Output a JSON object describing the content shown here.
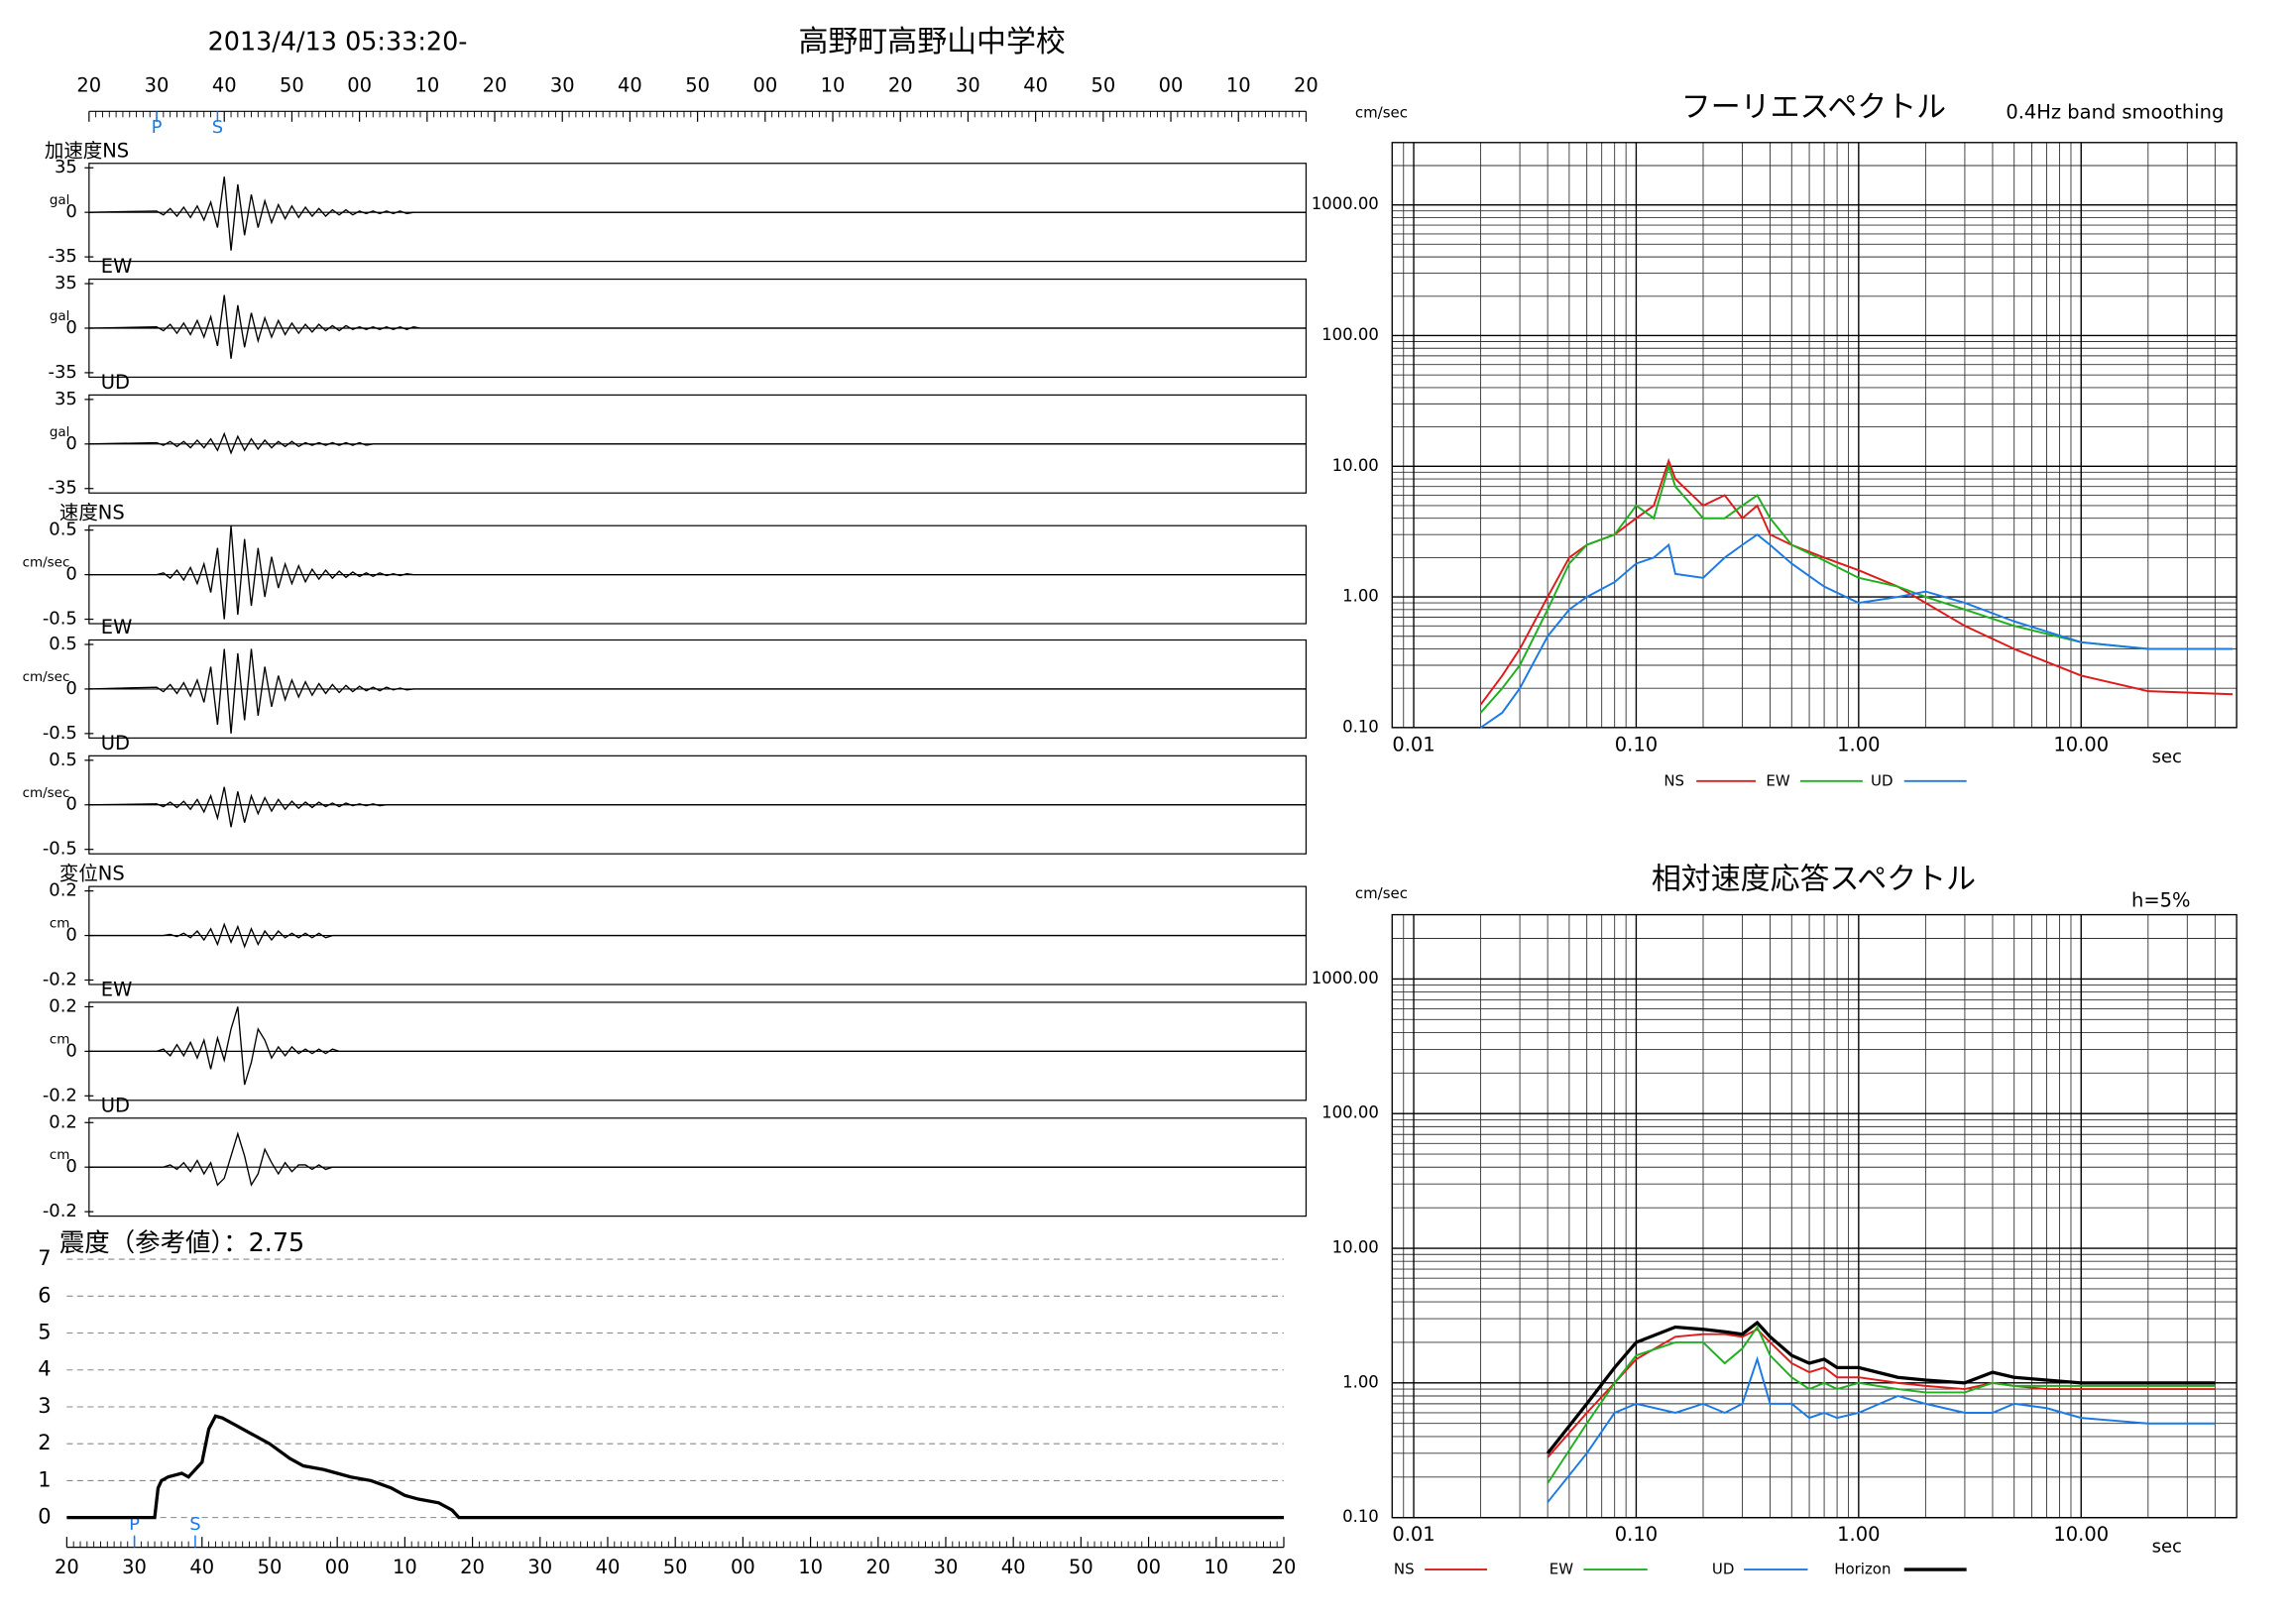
{
  "header": {
    "datetime": "2013/4/13 05:33:20-",
    "station": "高野町高野山中学校"
  },
  "chart_data": [
    {
      "type": "waveform",
      "x": [
        0,
        10,
        11,
        12,
        13,
        14,
        15,
        16,
        17,
        18,
        19,
        20,
        21,
        22,
        23,
        24,
        25,
        26,
        27,
        28,
        29,
        30,
        31,
        32,
        33,
        34,
        35,
        36,
        37,
        38,
        39,
        40,
        41,
        42,
        43,
        44,
        45,
        46,
        47,
        48,
        49,
        50,
        180
      ],
      "xlim": [
        0,
        180
      ],
      "xticks": [
        {
          "value": 0,
          "label": "20"
        },
        {
          "value": 10,
          "label": "30"
        },
        {
          "value": 20,
          "label": "40"
        },
        {
          "value": 30,
          "label": "50"
        },
        {
          "value": 40,
          "label": "00"
        },
        {
          "value": 50,
          "label": "10"
        },
        {
          "value": 60,
          "label": "20"
        },
        {
          "value": 70,
          "label": "30"
        },
        {
          "value": 80,
          "label": "40"
        },
        {
          "value": 90,
          "label": "50"
        },
        {
          "value": 100,
          "label": "00"
        },
        {
          "value": 110,
          "label": "10"
        },
        {
          "value": 120,
          "label": "20"
        },
        {
          "value": 130,
          "label": "30"
        },
        {
          "value": 140,
          "label": "40"
        },
        {
          "value": 150,
          "label": "50"
        },
        {
          "value": 160,
          "label": "00"
        },
        {
          "value": 170,
          "label": "10"
        },
        {
          "value": 180,
          "label": "20"
        }
      ],
      "markers": [
        {
          "label": "P",
          "x": 10
        },
        {
          "label": "S",
          "x": 19
        }
      ],
      "color": "#000000",
      "panels": [
        {
          "label": "加速度NS",
          "unit": "gal",
          "ylim": [
            -35,
            35
          ],
          "yticks": [
            35,
            0,
            -35
          ],
          "values": [
            0,
            1,
            -2,
            3,
            -3,
            4,
            -4,
            5,
            -6,
            8,
            -12,
            28,
            -30,
            22,
            -18,
            14,
            -12,
            9,
            -8,
            6,
            -5,
            5,
            -4,
            4,
            -3,
            3,
            -3,
            2,
            -2,
            2,
            -2,
            1,
            -1,
            1,
            -1,
            1,
            -1,
            1,
            -1,
            0,
            0,
            0,
            0
          ]
        },
        {
          "label": "EW",
          "unit": "gal",
          "ylim": [
            -35,
            35
          ],
          "yticks": [
            35,
            0,
            -35
          ],
          "values": [
            0,
            1,
            -2,
            3,
            -4,
            4,
            -5,
            6,
            -7,
            9,
            -14,
            26,
            -24,
            18,
            -15,
            12,
            -10,
            8,
            -7,
            6,
            -5,
            4,
            -4,
            3,
            -3,
            3,
            -2,
            2,
            -2,
            2,
            -1,
            1,
            -1,
            1,
            -1,
            1,
            -1,
            1,
            -1,
            1,
            0,
            0,
            0
          ]
        },
        {
          "label": "UD",
          "unit": "gal",
          "ylim": [
            -35,
            35
          ],
          "yticks": [
            35,
            0,
            -35
          ],
          "values": [
            0,
            1,
            -1,
            2,
            -2,
            2,
            -3,
            3,
            -3,
            4,
            -5,
            8,
            -7,
            6,
            -5,
            4,
            -4,
            3,
            -3,
            2,
            -2,
            2,
            -2,
            1,
            -1,
            1,
            -1,
            1,
            -1,
            1,
            -1,
            1,
            -1,
            0,
            0,
            0,
            0,
            0,
            0,
            0,
            0,
            0,
            0
          ]
        },
        {
          "label": "速度NS",
          "unit": "cm/sec",
          "ylim": [
            -0.5,
            0.5
          ],
          "yticks": [
            0.5,
            0,
            -0.5
          ],
          "values": [
            0,
            0,
            0.02,
            -0.04,
            0.05,
            -0.06,
            0.08,
            -0.1,
            0.12,
            -0.2,
            0.3,
            -0.5,
            0.55,
            -0.45,
            0.4,
            -0.35,
            0.3,
            -0.25,
            0.2,
            -0.15,
            0.12,
            -0.1,
            0.1,
            -0.08,
            0.06,
            -0.05,
            0.05,
            -0.04,
            0.04,
            -0.03,
            0.03,
            -0.02,
            0.02,
            -0.02,
            0.02,
            -0.01,
            0.01,
            -0.01,
            0.01,
            0,
            0,
            0,
            0
          ]
        },
        {
          "label": "EW",
          "unit": "cm/sec",
          "ylim": [
            -0.5,
            0.5
          ],
          "yticks": [
            0.5,
            0,
            -0.5
          ],
          "values": [
            0,
            0.02,
            -0.03,
            0.05,
            -0.05,
            0.07,
            -0.08,
            0.1,
            -0.15,
            0.25,
            -0.4,
            0.45,
            -0.5,
            0.4,
            -0.35,
            0.45,
            -0.3,
            0.25,
            -0.2,
            0.15,
            -0.12,
            0.1,
            -0.09,
            0.08,
            -0.07,
            0.06,
            -0.05,
            0.05,
            -0.04,
            0.04,
            -0.03,
            0.03,
            -0.02,
            0.02,
            -0.02,
            0.02,
            -0.01,
            0.01,
            -0.01,
            0,
            0,
            0,
            0
          ]
        },
        {
          "label": "UD",
          "unit": "cm/sec",
          "ylim": [
            -0.5,
            0.5
          ],
          "yticks": [
            0.5,
            0,
            -0.5
          ],
          "values": [
            0,
            0.01,
            -0.02,
            0.03,
            -0.03,
            0.04,
            -0.05,
            0.06,
            -0.08,
            0.1,
            -0.15,
            0.2,
            -0.25,
            0.15,
            -0.2,
            0.1,
            -0.1,
            0.08,
            -0.07,
            0.06,
            -0.05,
            0.04,
            -0.04,
            0.03,
            -0.03,
            0.03,
            -0.02,
            0.02,
            -0.02,
            0.02,
            -0.01,
            0.01,
            -0.01,
            0.01,
            -0.01,
            0,
            0,
            0,
            0,
            0,
            0,
            0,
            0
          ]
        },
        {
          "label": "変位NS",
          "unit": "cm",
          "ylim": [
            -0.2,
            0.2
          ],
          "yticks": [
            0.2,
            0,
            -0.2
          ],
          "values": [
            0,
            0,
            0,
            0.005,
            -0.005,
            0.01,
            -0.01,
            0.02,
            -0.02,
            0.03,
            -0.04,
            0.05,
            -0.03,
            0.04,
            -0.05,
            0.03,
            -0.04,
            0.02,
            -0.02,
            0.02,
            -0.01,
            0.01,
            -0.01,
            0.01,
            -0.01,
            0.01,
            -0.01,
            0,
            0,
            0,
            0,
            0,
            0,
            0,
            0,
            0,
            0,
            0,
            0,
            0,
            0,
            0,
            0
          ]
        },
        {
          "label": "EW",
          "unit": "cm",
          "ylim": [
            -0.2,
            0.2
          ],
          "yticks": [
            0.2,
            0,
            -0.2
          ],
          "values": [
            0,
            0,
            0.01,
            -0.02,
            0.03,
            -0.02,
            0.04,
            -0.03,
            0.05,
            -0.08,
            0.06,
            -0.04,
            0.1,
            0.2,
            -0.15,
            -0.05,
            0.1,
            0.05,
            -0.03,
            0.02,
            -0.02,
            0.02,
            -0.01,
            0.01,
            -0.01,
            0.01,
            -0.01,
            0.01,
            0,
            0,
            0,
            0,
            0,
            0,
            0,
            0,
            0,
            0,
            0,
            0,
            0,
            0,
            0
          ]
        },
        {
          "label": "UD",
          "unit": "cm",
          "ylim": [
            -0.2,
            0.2
          ],
          "yticks": [
            0.2,
            0,
            -0.2
          ],
          "values": [
            0,
            0,
            0,
            0.01,
            -0.01,
            0.02,
            -0.02,
            0.03,
            -0.03,
            0.02,
            -0.08,
            -0.05,
            0.05,
            0.15,
            0.05,
            -0.08,
            -0.03,
            0.08,
            0.02,
            -0.03,
            0.02,
            -0.02,
            0.01,
            0.01,
            -0.01,
            0.01,
            -0.01,
            0,
            0,
            0,
            0,
            0,
            0,
            0,
            0,
            0,
            0,
            0,
            0,
            0,
            0,
            0,
            0
          ]
        }
      ]
    },
    {
      "type": "intensity",
      "title": "震度（参考値）：2.75",
      "x": [
        0,
        13,
        13.5,
        14,
        15,
        17,
        18,
        20,
        21,
        22,
        23,
        25,
        27,
        30,
        33,
        35,
        38,
        40,
        42,
        45,
        48,
        50,
        52,
        55,
        57,
        58,
        180
      ],
      "values": [
        0,
        0,
        0.8,
        1.0,
        1.1,
        1.2,
        1.1,
        1.5,
        2.4,
        2.75,
        2.7,
        2.5,
        2.3,
        2.0,
        1.6,
        1.4,
        1.3,
        1.2,
        1.1,
        1.0,
        0.8,
        0.6,
        0.5,
        0.4,
        0.2,
        0,
        0
      ],
      "color": "#000000",
      "xlim": [
        0,
        180
      ],
      "xticks": [
        {
          "value": 0,
          "label": "20"
        },
        {
          "value": 10,
          "label": "30"
        },
        {
          "value": 20,
          "label": "40"
        },
        {
          "value": 30,
          "label": "50"
        },
        {
          "value": 40,
          "label": "00"
        },
        {
          "value": 50,
          "label": "10"
        },
        {
          "value": 60,
          "label": "20"
        },
        {
          "value": 70,
          "label": "30"
        },
        {
          "value": 80,
          "label": "40"
        },
        {
          "value": 90,
          "label": "50"
        },
        {
          "value": 100,
          "label": "00"
        },
        {
          "value": 110,
          "label": "10"
        },
        {
          "value": 120,
          "label": "20"
        },
        {
          "value": 130,
          "label": "30"
        },
        {
          "value": 140,
          "label": "40"
        },
        {
          "value": 150,
          "label": "50"
        },
        {
          "value": 160,
          "label": "00"
        },
        {
          "value": 170,
          "label": "10"
        },
        {
          "value": 180,
          "label": "20"
        }
      ],
      "ylim": [
        0,
        7
      ],
      "yticks": [
        0,
        1,
        2,
        3,
        4,
        5,
        6,
        7
      ],
      "grid": true,
      "markers": [
        {
          "label": "P",
          "x": 10
        },
        {
          "label": "S",
          "x": 19
        }
      ]
    },
    {
      "type": "spectrum",
      "title": "フーリエスペクトル",
      "subtitle": "0.4Hz band smoothing",
      "y_label": "cm/sec",
      "x_label": "sec",
      "xscale": "log",
      "yscale": "log",
      "grid": true,
      "xlim": [
        0.008,
        50
      ],
      "xticks": [
        0.01,
        {
          "value": 0.1,
          "label": "0.10"
        },
        {
          "value": 1,
          "label": "1.00"
        },
        {
          "value": 10,
          "label": "10.00"
        }
      ],
      "ylim": [
        0.1,
        3000
      ],
      "yticks": [
        {
          "value": 0.1,
          "label": "0.10"
        },
        {
          "value": 1,
          "label": "1.00"
        },
        {
          "value": 10,
          "label": "10.00"
        },
        {
          "value": 100,
          "label": "100.00"
        },
        {
          "value": 1000,
          "label": "1000.00"
        }
      ],
      "x": [
        0.02,
        0.025,
        0.03,
        0.04,
        0.05,
        0.06,
        0.08,
        0.1,
        0.12,
        0.14,
        0.15,
        0.2,
        0.25,
        0.3,
        0.35,
        0.4,
        0.5,
        0.7,
        1,
        1.5,
        2,
        3,
        5,
        10,
        20,
        48
      ],
      "series": [
        {
          "name": "NS",
          "color": "#e01a1a",
          "values": [
            0.15,
            0.25,
            0.4,
            1.0,
            2.0,
            2.5,
            3,
            4,
            5,
            11,
            8,
            5,
            6,
            4,
            5,
            3,
            2.5,
            2,
            1.6,
            1.2,
            0.9,
            0.6,
            0.4,
            0.25,
            0.19,
            0.18
          ]
        },
        {
          "name": "EW",
          "color": "#1eb01e",
          "values": [
            0.13,
            0.2,
            0.3,
            0.8,
            1.8,
            2.5,
            3,
            5,
            4,
            10,
            7,
            4,
            4,
            5,
            6,
            4,
            2.5,
            1.9,
            1.4,
            1.2,
            1.0,
            0.8,
            0.6,
            0.45,
            0.4,
            0.4
          ]
        },
        {
          "name": "UD",
          "color": "#1a7ae6",
          "values": [
            0.1,
            0.13,
            0.2,
            0.5,
            0.8,
            1.0,
            1.3,
            1.8,
            2,
            2.5,
            1.5,
            1.4,
            2,
            2.5,
            3,
            2.5,
            1.8,
            1.2,
            0.9,
            1.0,
            1.1,
            0.9,
            0.65,
            0.45,
            0.4,
            0.4
          ]
        }
      ]
    },
    {
      "type": "spectrum",
      "title": "相対速度応答スペクトル",
      "subtitle": "h=5%",
      "y_label": "cm/sec",
      "x_label": "sec",
      "xscale": "log",
      "yscale": "log",
      "grid": true,
      "xlim": [
        0.008,
        50
      ],
      "xticks": [
        0.01,
        {
          "value": 0.1,
          "label": "0.10"
        },
        {
          "value": 1,
          "label": "1.00"
        },
        {
          "value": 10,
          "label": "10.00"
        }
      ],
      "ylim": [
        0.1,
        3000
      ],
      "yticks": [
        {
          "value": 0.1,
          "label": "0.10"
        },
        {
          "value": 1,
          "label": "1.00"
        },
        {
          "value": 10,
          "label": "10.00"
        },
        {
          "value": 100,
          "label": "100.00"
        },
        {
          "value": 1000,
          "label": "1000.00"
        }
      ],
      "x": [
        0.04,
        0.06,
        0.08,
        0.1,
        0.15,
        0.2,
        0.25,
        0.3,
        0.35,
        0.4,
        0.5,
        0.6,
        0.7,
        0.8,
        1,
        1.5,
        2,
        3,
        4,
        5,
        7,
        10,
        20,
        40
      ],
      "series": [
        {
          "name": "NS",
          "color": "#e01a1a",
          "values": [
            0.28,
            0.6,
            1.0,
            1.5,
            2.2,
            2.3,
            2.3,
            2.2,
            2.5,
            2.0,
            1.4,
            1.2,
            1.3,
            1.1,
            1.1,
            1.0,
            0.95,
            0.9,
            1.0,
            0.95,
            0.9,
            0.9,
            0.9,
            0.9
          ]
        },
        {
          "name": "EW",
          "color": "#1eb01e",
          "values": [
            0.18,
            0.5,
            1.0,
            1.6,
            2.0,
            2.0,
            1.4,
            1.8,
            2.6,
            1.6,
            1.1,
            0.9,
            1.0,
            0.9,
            1.0,
            0.9,
            0.85,
            0.85,
            1.0,
            0.95,
            0.95,
            0.95,
            0.95,
            0.95
          ]
        },
        {
          "name": "UD",
          "color": "#1a7ae6",
          "values": [
            0.13,
            0.3,
            0.6,
            0.7,
            0.6,
            0.7,
            0.6,
            0.7,
            1.5,
            0.7,
            0.7,
            0.55,
            0.6,
            0.55,
            0.6,
            0.8,
            0.7,
            0.6,
            0.6,
            0.7,
            0.65,
            0.55,
            0.5,
            0.5
          ]
        },
        {
          "name": "Horizon",
          "color": "#000000",
          "values": [
            0.3,
            0.7,
            1.3,
            2.0,
            2.6,
            2.5,
            2.4,
            2.3,
            2.8,
            2.2,
            1.6,
            1.4,
            1.5,
            1.3,
            1.3,
            1.1,
            1.05,
            1.0,
            1.2,
            1.1,
            1.05,
            1.0,
            1.0,
            1.0
          ]
        }
      ]
    }
  ]
}
